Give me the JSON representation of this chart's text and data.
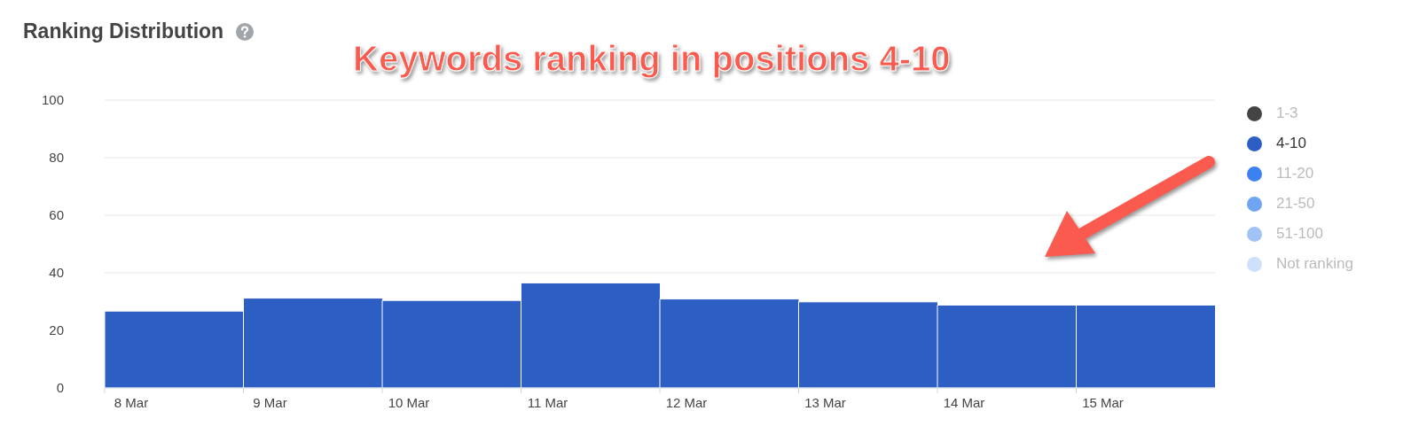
{
  "chart_data": {
    "type": "bar",
    "title": "Ranking Distribution",
    "annotations": [
      "Keywords ranking in positions 4-10"
    ],
    "categories": [
      "8 Mar",
      "9 Mar",
      "10 Mar",
      "11 Mar",
      "12 Mar",
      "13 Mar",
      "14 Mar",
      "15 Mar"
    ],
    "series": [
      {
        "name": "1-3",
        "color": "#444444",
        "values": [
          null,
          null,
          null,
          null,
          null,
          null,
          null,
          null
        ]
      },
      {
        "name": "4-10",
        "color": "#2c5ec4",
        "values": [
          26.7,
          31.2,
          30.4,
          36.5,
          30.9,
          29.9,
          28.8,
          28.8
        ]
      },
      {
        "name": "11-20",
        "color": "#3b82f0",
        "values": [
          null,
          null,
          null,
          null,
          null,
          null,
          null,
          null
        ]
      },
      {
        "name": "21-50",
        "color": "#6ea4f2",
        "values": [
          null,
          null,
          null,
          null,
          null,
          null,
          null,
          null
        ]
      },
      {
        "name": "51-100",
        "color": "#a0c2f5",
        "values": [
          null,
          null,
          null,
          null,
          null,
          null,
          null,
          null
        ]
      },
      {
        "name": "Not ranking",
        "color": "#cfe0fa",
        "values": [
          null,
          null,
          null,
          null,
          null,
          null,
          null,
          null
        ]
      }
    ],
    "stacked": true,
    "ylim": [
      0,
      100
    ],
    "yticks": [
      0,
      20,
      40,
      60,
      80,
      100
    ],
    "grid": "y",
    "legend": "right"
  }
}
